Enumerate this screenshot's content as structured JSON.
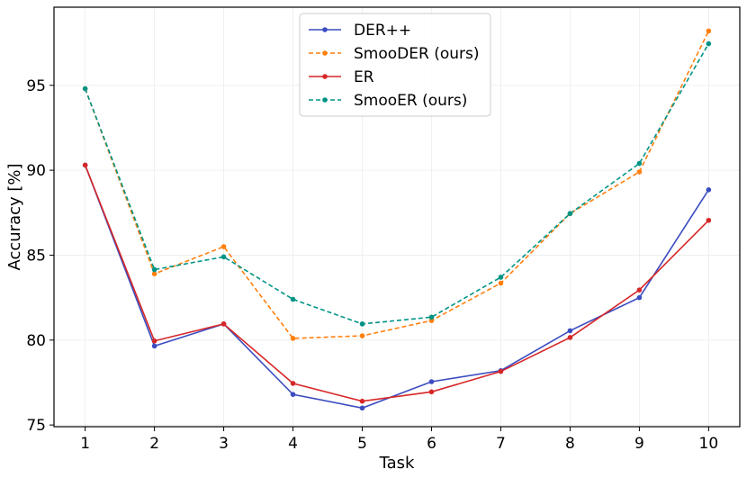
{
  "chart_data": {
    "type": "line",
    "title": "",
    "xlabel": "Task",
    "ylabel": "Accuracy [%]",
    "x": [
      1,
      2,
      3,
      4,
      5,
      6,
      7,
      8,
      9,
      10
    ],
    "xlim": [
      0.55,
      10.45
    ],
    "ylim": [
      74.9,
      99.6
    ],
    "xticks": [
      1,
      2,
      3,
      4,
      5,
      6,
      7,
      8,
      9,
      10
    ],
    "yticks": [
      75,
      80,
      85,
      90,
      95
    ],
    "grid": true,
    "legend_position": "top-center",
    "series": [
      {
        "name": "DER++",
        "color": "#3b4cc0",
        "style": "solid",
        "values": [
          90.3,
          79.65,
          80.95,
          76.8,
          76.0,
          77.55,
          78.2,
          80.55,
          82.5,
          88.85
        ]
      },
      {
        "name": "SmooDER (ours)",
        "color": "#ff7f0e",
        "style": "dashed",
        "values": [
          94.8,
          83.9,
          85.5,
          80.1,
          80.25,
          81.15,
          83.35,
          87.45,
          89.9,
          98.2
        ]
      },
      {
        "name": "ER",
        "color": "#d62728",
        "style": "solid",
        "values": [
          90.3,
          79.95,
          80.95,
          77.45,
          76.4,
          76.95,
          78.15,
          80.15,
          82.95,
          87.05
        ]
      },
      {
        "name": "SmooER (ours)",
        "color": "#009485",
        "style": "dashed",
        "values": [
          94.8,
          84.15,
          84.9,
          82.4,
          80.95,
          81.35,
          83.7,
          87.45,
          90.4,
          97.45
        ]
      }
    ]
  }
}
